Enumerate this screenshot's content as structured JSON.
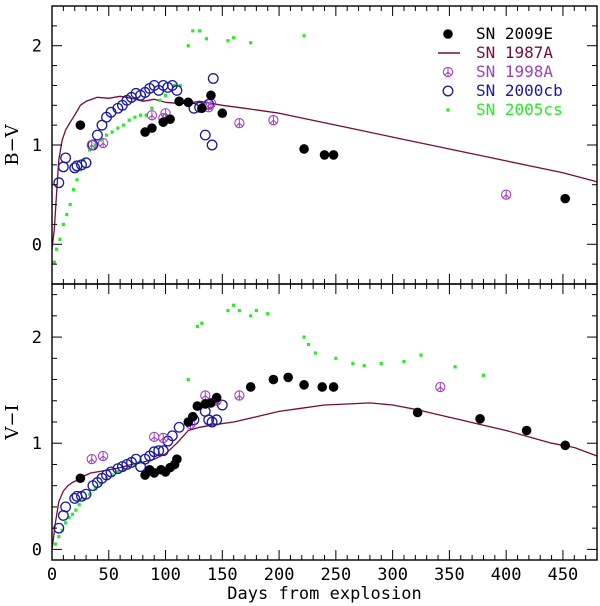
{
  "chart_data": {
    "type": "scatter",
    "xlabel": "Days from explosion",
    "xlim": [
      0,
      480
    ],
    "xticks": [
      0,
      50,
      100,
      150,
      200,
      250,
      300,
      350,
      400,
      450
    ],
    "legend_position": "top-right",
    "series_meta": [
      {
        "name": "SN 2009E",
        "color": "#000000",
        "marker": "filled-circle"
      },
      {
        "name": "SN 1987A",
        "color": "#7a0a3a",
        "marker": "line"
      },
      {
        "name": "SN 1998A",
        "color": "#a040c0",
        "marker": "peace-circle"
      },
      {
        "name": "SN 2000cb",
        "color": "#1a1aa0",
        "marker": "open-circle"
      },
      {
        "name": "SN 2005cs",
        "color": "#22ee22",
        "marker": "small-dot"
      }
    ],
    "panels": [
      {
        "ylabel": "B−V",
        "ylim": [
          -0.4,
          2.4
        ],
        "yticks": [
          0,
          1,
          2
        ],
        "series": {
          "SN 2009E": [
            [
              25,
              1.2
            ],
            [
              82,
              1.13
            ],
            [
              88,
              1.17
            ],
            [
              98,
              1.23
            ],
            [
              104,
              1.26
            ],
            [
              112,
              1.44
            ],
            [
              120,
              1.43
            ],
            [
              132,
              1.37
            ],
            [
              140,
              1.5
            ],
            [
              150,
              1.32
            ],
            [
              222,
              0.96
            ],
            [
              240,
              0.9
            ],
            [
              248,
              0.9
            ],
            [
              452,
              0.46
            ]
          ],
          "SN 1987A": [
            [
              0,
              -0.05
            ],
            [
              2,
              0.15
            ],
            [
              4,
              0.5
            ],
            [
              6,
              0.85
            ],
            [
              9,
              1.05
            ],
            [
              12,
              1.15
            ],
            [
              16,
              1.23
            ],
            [
              20,
              1.3
            ],
            [
              25,
              1.4
            ],
            [
              30,
              1.44
            ],
            [
              40,
              1.48
            ],
            [
              50,
              1.47
            ],
            [
              60,
              1.49
            ],
            [
              70,
              1.47
            ],
            [
              80,
              1.44
            ],
            [
              90,
              1.46
            ],
            [
              100,
              1.43
            ],
            [
              110,
              1.42
            ],
            [
              120,
              1.42
            ],
            [
              130,
              1.44
            ],
            [
              140,
              1.42
            ],
            [
              150,
              1.4
            ],
            [
              170,
              1.37
            ],
            [
              200,
              1.32
            ],
            [
              250,
              1.2
            ],
            [
              300,
              1.08
            ],
            [
              350,
              0.96
            ],
            [
              400,
              0.84
            ],
            [
              450,
              0.72
            ],
            [
              480,
              0.63
            ]
          ],
          "SN 1998A": [
            [
              35,
              1.0
            ],
            [
              45,
              1.02
            ],
            [
              88,
              1.3
            ],
            [
              98,
              1.27
            ],
            [
              100,
              1.32
            ],
            [
              138,
              1.38
            ],
            [
              140,
              1.42
            ],
            [
              165,
              1.22
            ],
            [
              195,
              1.25
            ],
            [
              400,
              0.5
            ]
          ],
          "SN 2000cb": [
            [
              6,
              0.62
            ],
            [
              10,
              0.78
            ],
            [
              12,
              0.87
            ],
            [
              20,
              0.77
            ],
            [
              22,
              0.79
            ],
            [
              26,
              0.8
            ],
            [
              30,
              0.82
            ],
            [
              36,
              1.0
            ],
            [
              40,
              1.1
            ],
            [
              44,
              1.2
            ],
            [
              48,
              1.28
            ],
            [
              52,
              1.33
            ],
            [
              58,
              1.37
            ],
            [
              62,
              1.4
            ],
            [
              66,
              1.45
            ],
            [
              70,
              1.48
            ],
            [
              74,
              1.52
            ],
            [
              78,
              1.5
            ],
            [
              82,
              1.53
            ],
            [
              86,
              1.57
            ],
            [
              90,
              1.6
            ],
            [
              94,
              1.55
            ],
            [
              98,
              1.6
            ],
            [
              102,
              1.58
            ],
            [
              106,
              1.6
            ],
            [
              110,
              1.55
            ],
            [
              125,
              1.37
            ],
            [
              130,
              1.38
            ],
            [
              135,
              1.1
            ],
            [
              138,
              1.41
            ],
            [
              141,
              1.0
            ],
            [
              142,
              1.67
            ]
          ],
          "SN 2005cs": [
            [
              2,
              -0.18
            ],
            [
              4,
              -0.05
            ],
            [
              7,
              0.05
            ],
            [
              10,
              0.2
            ],
            [
              13,
              0.3
            ],
            [
              16,
              0.4
            ],
            [
              19,
              0.55
            ],
            [
              22,
              0.65
            ],
            [
              25,
              0.75
            ],
            [
              28,
              0.85
            ],
            [
              33,
              0.95
            ],
            [
              38,
              1.0
            ],
            [
              43,
              1.05
            ],
            [
              48,
              1.1
            ],
            [
              53,
              1.13
            ],
            [
              58,
              1.17
            ],
            [
              63,
              1.2
            ],
            [
              68,
              1.25
            ],
            [
              73,
              1.28
            ],
            [
              78,
              1.3
            ],
            [
              83,
              1.3
            ],
            [
              88,
              1.37
            ],
            [
              95,
              1.45
            ],
            [
              100,
              1.5
            ],
            [
              108,
              1.6
            ],
            [
              113,
              1.6
            ],
            [
              120,
              2.0
            ],
            [
              124,
              2.15
            ],
            [
              130,
              2.15
            ],
            [
              136,
              2.07
            ],
            [
              155,
              2.05
            ],
            [
              160,
              2.08
            ],
            [
              175,
              2.03
            ],
            [
              222,
              2.1
            ]
          ]
        }
      },
      {
        "ylabel": "V−I",
        "ylim": [
          -0.1,
          2.5
        ],
        "yticks": [
          0,
          1,
          2
        ],
        "series": {
          "SN 2009E": [
            [
              25,
              0.67
            ],
            [
              82,
              0.7
            ],
            [
              86,
              0.75
            ],
            [
              90,
              0.72
            ],
            [
              96,
              0.75
            ],
            [
              100,
              0.73
            ],
            [
              104,
              0.77
            ],
            [
              108,
              0.8
            ],
            [
              110,
              0.85
            ],
            [
              120,
              1.2
            ],
            [
              124,
              1.25
            ],
            [
              128,
              1.35
            ],
            [
              135,
              1.37
            ],
            [
              140,
              1.38
            ],
            [
              145,
              1.43
            ],
            [
              175,
              1.53
            ],
            [
              195,
              1.6
            ],
            [
              208,
              1.62
            ],
            [
              222,
              1.55
            ],
            [
              238,
              1.53
            ],
            [
              248,
              1.53
            ],
            [
              322,
              1.29
            ],
            [
              377,
              1.23
            ],
            [
              418,
              1.12
            ],
            [
              452,
              0.98
            ]
          ],
          "SN 1987A": [
            [
              0,
              0.0
            ],
            [
              3,
              0.25
            ],
            [
              6,
              0.45
            ],
            [
              10,
              0.55
            ],
            [
              14,
              0.6
            ],
            [
              18,
              0.63
            ],
            [
              22,
              0.65
            ],
            [
              28,
              0.69
            ],
            [
              34,
              0.72
            ],
            [
              40,
              0.73
            ],
            [
              50,
              0.75
            ],
            [
              60,
              0.77
            ],
            [
              70,
              0.8
            ],
            [
              80,
              0.82
            ],
            [
              90,
              0.85
            ],
            [
              100,
              0.9
            ],
            [
              110,
              1.0
            ],
            [
              120,
              1.12
            ],
            [
              130,
              1.15
            ],
            [
              140,
              1.17
            ],
            [
              160,
              1.2
            ],
            [
              180,
              1.25
            ],
            [
              200,
              1.3
            ],
            [
              220,
              1.33
            ],
            [
              240,
              1.36
            ],
            [
              260,
              1.37
            ],
            [
              280,
              1.38
            ],
            [
              300,
              1.36
            ],
            [
              320,
              1.32
            ],
            [
              340,
              1.27
            ],
            [
              360,
              1.22
            ],
            [
              380,
              1.17
            ],
            [
              400,
              1.12
            ],
            [
              420,
              1.06
            ],
            [
              440,
              1.0
            ],
            [
              460,
              0.96
            ],
            [
              480,
              0.88
            ]
          ],
          "SN 1998A": [
            [
              35,
              0.85
            ],
            [
              45,
              0.88
            ],
            [
              90,
              1.06
            ],
            [
              98,
              1.05
            ],
            [
              122,
              1.18
            ],
            [
              135,
              1.45
            ],
            [
              145,
              1.4
            ],
            [
              165,
              1.45
            ],
            [
              342,
              1.53
            ]
          ],
          "SN 2000cb": [
            [
              6,
              0.2
            ],
            [
              10,
              0.32
            ],
            [
              12,
              0.4
            ],
            [
              20,
              0.48
            ],
            [
              22,
              0.5
            ],
            [
              26,
              0.5
            ],
            [
              30,
              0.52
            ],
            [
              36,
              0.6
            ],
            [
              40,
              0.63
            ],
            [
              44,
              0.67
            ],
            [
              48,
              0.7
            ],
            [
              52,
              0.73
            ],
            [
              58,
              0.76
            ],
            [
              62,
              0.78
            ],
            [
              66,
              0.8
            ],
            [
              70,
              0.82
            ],
            [
              74,
              0.85
            ],
            [
              78,
              0.78
            ],
            [
              82,
              0.85
            ],
            [
              86,
              0.88
            ],
            [
              90,
              0.92
            ],
            [
              94,
              0.93
            ],
            [
              98,
              0.93
            ],
            [
              102,
              1.02
            ],
            [
              106,
              1.07
            ],
            [
              112,
              1.15
            ],
            [
              125,
              1.22
            ],
            [
              135,
              1.3
            ],
            [
              138,
              1.22
            ],
            [
              141,
              1.2
            ],
            [
              145,
              1.22
            ],
            [
              150,
              1.36
            ]
          ],
          "SN 2005cs": [
            [
              3,
              0.05
            ],
            [
              6,
              0.12
            ],
            [
              9,
              0.18
            ],
            [
              12,
              0.25
            ],
            [
              15,
              0.3
            ],
            [
              18,
              0.33
            ],
            [
              21,
              0.37
            ],
            [
              24,
              0.42
            ],
            [
              28,
              0.47
            ],
            [
              33,
              0.52
            ],
            [
              38,
              0.57
            ],
            [
              43,
              0.62
            ],
            [
              48,
              0.67
            ],
            [
              53,
              0.7
            ],
            [
              58,
              0.73
            ],
            [
              63,
              0.75
            ],
            [
              68,
              0.78
            ],
            [
              73,
              0.8
            ],
            [
              78,
              0.83
            ],
            [
              120,
              1.6
            ],
            [
              128,
              2.1
            ],
            [
              132,
              2.13
            ],
            [
              155,
              2.25
            ],
            [
              160,
              2.3
            ],
            [
              165,
              2.25
            ],
            [
              175,
              2.2
            ],
            [
              180,
              2.25
            ],
            [
              190,
              2.22
            ],
            [
              222,
              2.0
            ],
            [
              226,
              1.93
            ],
            [
              232,
              1.85
            ],
            [
              250,
              1.8
            ],
            [
              265,
              1.75
            ],
            [
              275,
              1.73
            ],
            [
              290,
              1.75
            ],
            [
              310,
              1.77
            ],
            [
              325,
              1.83
            ],
            [
              355,
              1.72
            ],
            [
              380,
              1.64
            ]
          ]
        }
      }
    ]
  }
}
